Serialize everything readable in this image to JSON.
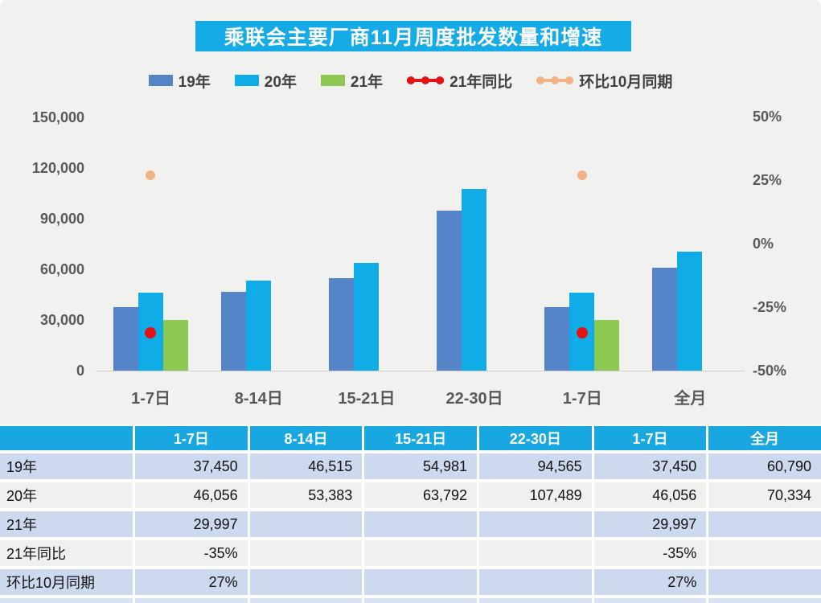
{
  "title": "乘联会主要厂商11月周度批发数量和增速",
  "colors": {
    "title_bg": "#14abe6",
    "bar_19": "#5585c8",
    "bar_20": "#10ace8",
    "bar_21": "#8dc952",
    "line_yoy": "#e31313",
    "line_mom": "#f3b283",
    "chart_bg": "#f1f1f0",
    "table_header_bg": "#18a7e1",
    "row_blue": "#ccd9ee",
    "row_light": "#f0f0ee",
    "axis_text": "#595959"
  },
  "legend": [
    {
      "label": "19年",
      "type": "bar",
      "color": "#5585c8"
    },
    {
      "label": "20年",
      "type": "bar",
      "color": "#10ace8"
    },
    {
      "label": "21年",
      "type": "bar",
      "color": "#8dc952"
    },
    {
      "label": "21年同比",
      "type": "line",
      "color": "#e31313"
    },
    {
      "label": "环比10月同期",
      "type": "line",
      "color": "#f3b283"
    }
  ],
  "chart_data": {
    "type": "bar",
    "title": "乘联会主要厂商11月周度批发数量和增速",
    "categories": [
      "1-7日",
      "8-14日",
      "15-21日",
      "22-30日",
      "1-7日",
      "全月"
    ],
    "series": [
      {
        "name": "19年",
        "type": "bar",
        "axis": "left",
        "color": "#5585c8",
        "values": [
          37450,
          46515,
          54981,
          94565,
          37450,
          60790
        ]
      },
      {
        "name": "20年",
        "type": "bar",
        "axis": "left",
        "color": "#10ace8",
        "values": [
          46056,
          53383,
          63792,
          107489,
          46056,
          70334
        ]
      },
      {
        "name": "21年",
        "type": "bar",
        "axis": "left",
        "color": "#8dc952",
        "values": [
          29997,
          null,
          null,
          null,
          29997,
          null
        ]
      },
      {
        "name": "21年同比",
        "type": "point",
        "axis": "right",
        "color": "#e31313",
        "values": [
          -35,
          null,
          null,
          null,
          -35,
          null
        ]
      },
      {
        "name": "环比10月同期",
        "type": "point",
        "axis": "right",
        "color": "#f3b283",
        "values": [
          27,
          null,
          null,
          null,
          27,
          null
        ]
      }
    ],
    "left_axis": {
      "label": "",
      "min": 0,
      "max": 150000,
      "tick_step": 30000,
      "ticks": [
        "150,000",
        "120,000",
        "90,000",
        "60,000",
        "30,000",
        "0"
      ]
    },
    "right_axis": {
      "label": "",
      "min": -50,
      "max": 50,
      "tick_step": 25,
      "ticks": [
        "50%",
        "25%",
        "0%",
        "-25%",
        "-50%"
      ]
    },
    "grid": false,
    "legend_position": "top"
  },
  "table": {
    "header": [
      "",
      "1-7日",
      "8-14日",
      "15-21日",
      "22-30日",
      "1-7日",
      "全月"
    ],
    "rows": [
      {
        "label": "19年",
        "shade": "blue",
        "values": [
          "37,450",
          "46,515",
          "54,981",
          "94,565",
          "37,450",
          "60,790"
        ]
      },
      {
        "label": "20年",
        "shade": "light",
        "values": [
          "46,056",
          "53,383",
          "63,792",
          "107,489",
          "46,056",
          "70,334"
        ]
      },
      {
        "label": "21年",
        "shade": "blue",
        "values": [
          "29,997",
          "",
          "",
          "",
          "29,997",
          ""
        ]
      },
      {
        "label": "21年同比",
        "shade": "light",
        "values": [
          "-35%",
          "",
          "",
          "",
          "-35%",
          ""
        ]
      },
      {
        "label": "环比10月同期",
        "shade": "blue",
        "values": [
          "27%",
          "",
          "",
          "",
          "27%",
          ""
        ]
      }
    ]
  }
}
